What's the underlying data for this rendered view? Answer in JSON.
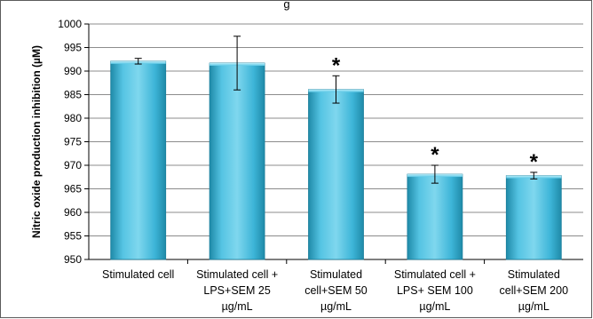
{
  "chart_data": {
    "type": "bar",
    "title_fragment": "g",
    "ylabel": "Nitric oxide production inhibition (µM)",
    "xlabel": "",
    "ylim": [
      950,
      1000
    ],
    "ytick_step": 5,
    "yticks": [
      "950",
      "955",
      "960",
      "965",
      "970",
      "975",
      "980",
      "985",
      "990",
      "995",
      "1000"
    ],
    "grid": "horizontal",
    "categories": [
      [
        "Stimulated cell"
      ],
      [
        "Stimulated cell +",
        "LPS+SEM 25",
        "µg/mL"
      ],
      [
        "Stimulated",
        "cell+SEM 50",
        "µg/mL"
      ],
      [
        "Stimulated cell +",
        "LPS+ SEM 100",
        "µg/mL"
      ],
      [
        "Stimulated",
        "cell+SEM 200",
        "µg/mL"
      ]
    ],
    "values": [
      992.1,
      991.7,
      986.1,
      968.1,
      967.8
    ],
    "errors": [
      0.6,
      5.7,
      2.9,
      1.9,
      0.7
    ],
    "significance": [
      "",
      "",
      "*",
      "*",
      "*"
    ],
    "colors": {
      "bar_light": "#7fd7ee",
      "bar_mid": "#38b3d6",
      "bar_dark": "#1f8aa8",
      "grid": "#8c8c8c"
    }
  }
}
